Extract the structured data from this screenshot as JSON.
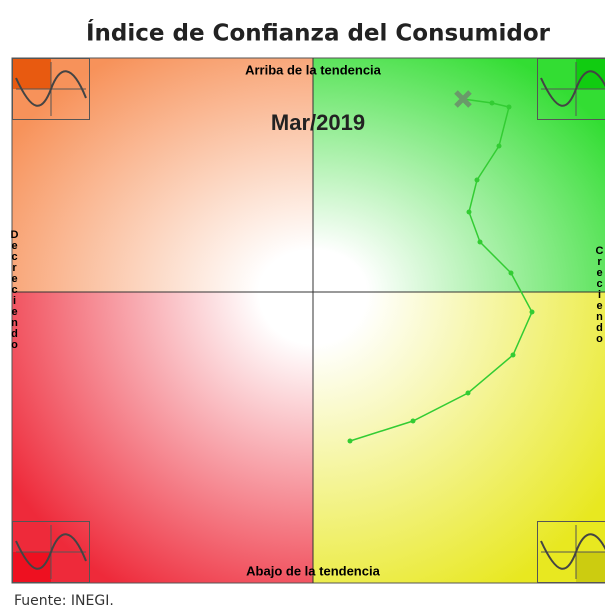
{
  "chart_data": {
    "type": "line",
    "title": "Índice de Confianza del Consumidor",
    "annotations": {
      "top": "Arriba de la tendencia",
      "bottom": "Abajo de la tendencia",
      "date": "Mar/2019",
      "left": "Decreciendo",
      "right": "Creciendo"
    },
    "source": "Fuente: INEGI.",
    "color": "#33cc33",
    "xlim": [
      -300,
      300
    ],
    "ylim": [
      -291,
      234
    ],
    "x": [
      38,
      101,
      156,
      201,
      220,
      199,
      168,
      157,
      165,
      187,
      197,
      180,
      151
    ],
    "values": [
      -149,
      -129,
      -101,
      -63,
      -20,
      19,
      50,
      80,
      112,
      146,
      185,
      189,
      193
    ]
  }
}
